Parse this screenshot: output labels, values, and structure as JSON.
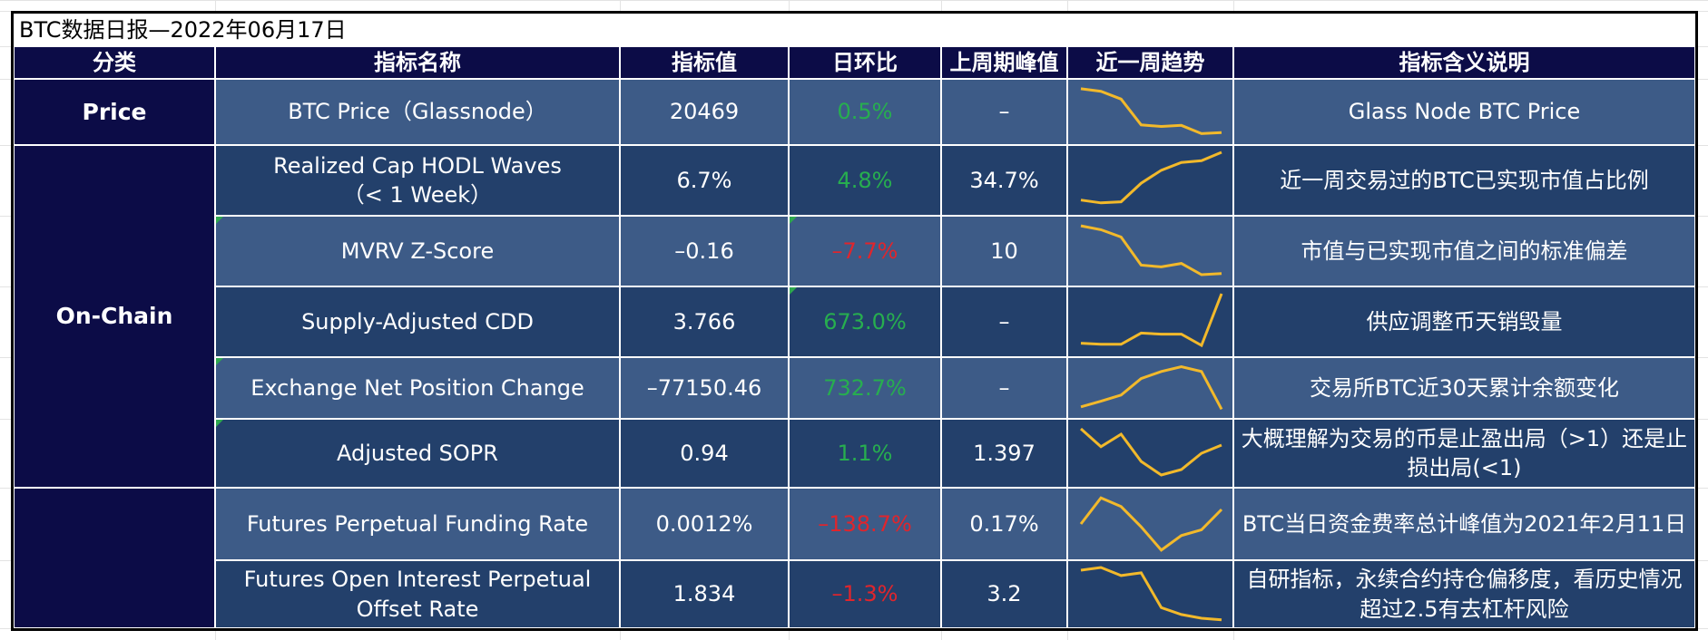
{
  "title": "BTC数据日报—2022年06月17日",
  "headers": [
    "分类",
    "指标名称",
    "指标值",
    "日环比",
    "上周期峰值",
    "近一周趋势",
    "指标含义说明"
  ],
  "categories": [
    "Price",
    "On-Chain",
    ""
  ],
  "colors": {
    "header_bg": "#0c0c47",
    "row_light": "#3d5b87",
    "row_dark": "#23406b",
    "positive": "#27ae4f",
    "negative": "#e0252c",
    "sparkline": "#f2b92b"
  },
  "rows": [
    {
      "name": "BTC Price（Glassnode）",
      "value": "20469",
      "change": "0.5%",
      "change_sign": "pos",
      "peak": "–",
      "desc": "Glass Node BTC Price",
      "trend": [
        0.95,
        0.9,
        0.75,
        0.25,
        0.22,
        0.24,
        0.08,
        0.1
      ]
    },
    {
      "name": "Realized Cap HODL Waves\n（< 1 Week）",
      "value": "6.7%",
      "change": "4.8%",
      "change_sign": "pos",
      "peak": "34.7%",
      "desc": "近一周交易过的BTC已实现市值占比例",
      "trend": [
        0.15,
        0.1,
        0.12,
        0.45,
        0.68,
        0.82,
        0.85,
        1.0
      ]
    },
    {
      "name": "MVRV Z-Score",
      "value": "–0.16",
      "change": "–7.7%",
      "change_sign": "neg",
      "peak": "10",
      "desc": "市值与已实现市值之间的标准偏差",
      "trend": [
        0.95,
        0.88,
        0.75,
        0.25,
        0.22,
        0.28,
        0.08,
        0.1
      ]
    },
    {
      "name": "Supply-Adjusted CDD",
      "value": "3.766",
      "change": "673.0%",
      "change_sign": "pos",
      "peak": "–",
      "desc": "供应调整币天销毁量",
      "trend": [
        0.12,
        0.1,
        0.1,
        0.3,
        0.28,
        0.28,
        0.08,
        1.0
      ]
    },
    {
      "name": "Exchange Net Position Change",
      "value": "–77150.46",
      "change": "732.7%",
      "change_sign": "pos",
      "peak": "–",
      "desc": "交易所BTC近30天累计余额变化",
      "trend": [
        0.1,
        0.22,
        0.35,
        0.7,
        0.85,
        0.95,
        0.85,
        0.05
      ]
    },
    {
      "name": "Adjusted SOPR",
      "value": "0.94",
      "change": "1.1%",
      "change_sign": "pos",
      "peak": "1.397",
      "desc": "大概理解为交易的币是止盈出局（>1）还是止损出局(<1)",
      "trend": [
        0.95,
        0.62,
        0.85,
        0.35,
        0.1,
        0.2,
        0.5,
        0.65
      ]
    },
    {
      "name": "Futures Perpetual Funding Rate",
      "value": "0.0012%",
      "change": "–138.7%",
      "change_sign": "neg",
      "peak": "0.17%",
      "desc": "BTC当日资金费率总计峰值为2021年2月11日",
      "trend": [
        0.5,
        0.95,
        0.8,
        0.45,
        0.05,
        0.3,
        0.4,
        0.75
      ]
    },
    {
      "name": "Futures Open Interest Perpetual\nOffset Rate",
      "value": "1.834",
      "change": "–1.3%",
      "change_sign": "neg",
      "peak": "3.2",
      "desc": "自研指标，永续合约持仓偏移度，看历史情况超过2.5有去杠杆风险",
      "trend": [
        0.95,
        1.0,
        0.85,
        0.9,
        0.25,
        0.12,
        0.05,
        0.02
      ]
    }
  ]
}
